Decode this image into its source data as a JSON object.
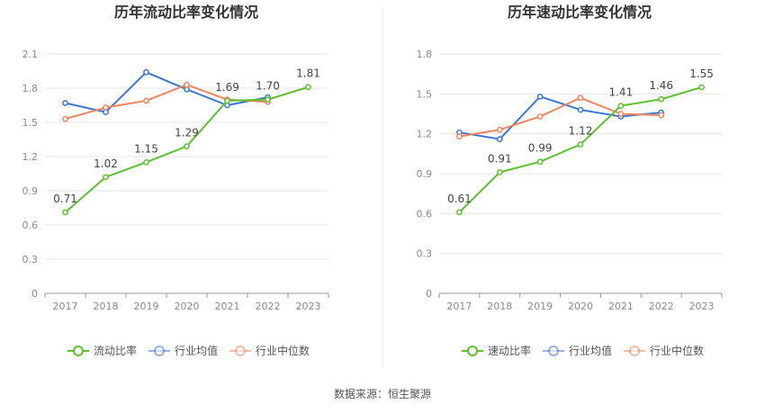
{
  "source_label": "数据来源：恒生聚源",
  "chart_data": [
    {
      "type": "line",
      "title": "历年流动比率变化情况",
      "categories": [
        "2017",
        "2018",
        "2019",
        "2020",
        "2021",
        "2022",
        "2023"
      ],
      "ylim": [
        0,
        2.1
      ],
      "yticks": [
        "0",
        "0.3",
        "0.6",
        "0.9",
        "1.2",
        "1.5",
        "1.8",
        "2.1"
      ],
      "grid": true,
      "legend_position": "bottom",
      "series": [
        {
          "name": "流动比率",
          "color": "#5cc22b",
          "values": [
            0.71,
            1.02,
            1.15,
            1.29,
            1.69,
            1.7,
            1.81
          ],
          "labels": [
            "0.71",
            "1.02",
            "1.15",
            "1.29",
            "1.69",
            "1.70",
            "1.81"
          ]
        },
        {
          "name": "行业均值",
          "color": "#3a78d8",
          "values": [
            1.67,
            1.59,
            1.94,
            1.79,
            1.65,
            1.72,
            null
          ]
        },
        {
          "name": "行业中位数",
          "color": "#f0845c",
          "values": [
            1.53,
            1.63,
            1.69,
            1.83,
            1.7,
            1.68,
            null
          ]
        }
      ]
    },
    {
      "type": "line",
      "title": "历年速动比率变化情况",
      "categories": [
        "2017",
        "2018",
        "2019",
        "2020",
        "2021",
        "2022",
        "2023"
      ],
      "ylim": [
        0,
        1.8
      ],
      "yticks": [
        "0",
        "0.3",
        "0.6",
        "0.9",
        "1.2",
        "1.5",
        "1.8"
      ],
      "grid": true,
      "legend_position": "bottom",
      "series": [
        {
          "name": "速动比率",
          "color": "#5cc22b",
          "values": [
            0.61,
            0.91,
            0.99,
            1.12,
            1.41,
            1.46,
            1.55
          ],
          "labels": [
            "0.61",
            "0.91",
            "0.99",
            "1.12",
            "1.41",
            "1.46",
            "1.55"
          ]
        },
        {
          "name": "行业均值",
          "color": "#3a78d8",
          "values": [
            1.21,
            1.16,
            1.48,
            1.38,
            1.33,
            1.36,
            null
          ]
        },
        {
          "name": "行业中位数",
          "color": "#f0845c",
          "values": [
            1.18,
            1.23,
            1.33,
            1.47,
            1.35,
            1.34,
            null
          ]
        }
      ]
    }
  ]
}
